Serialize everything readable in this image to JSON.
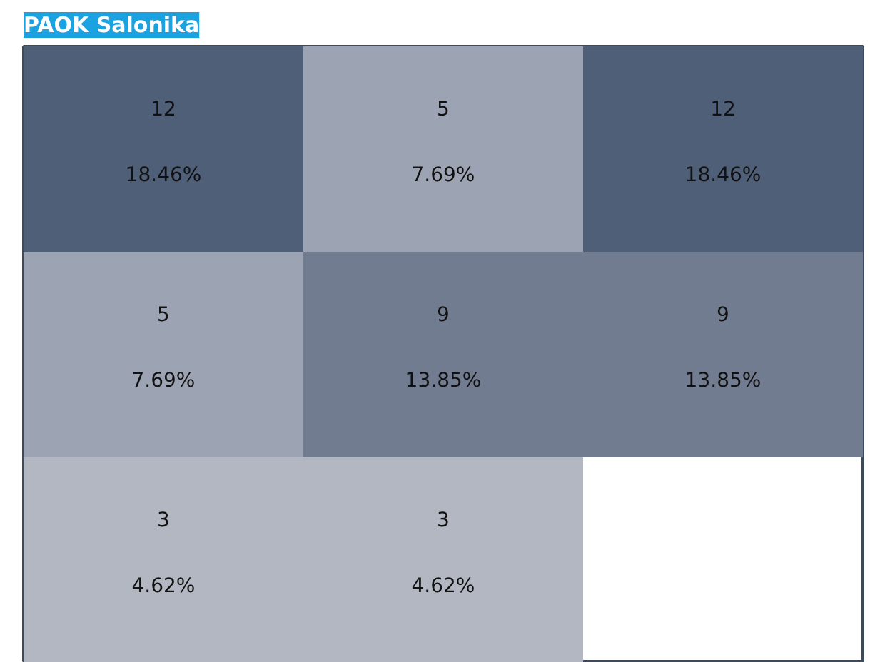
{
  "chart_data": {
    "type": "heatmap",
    "title": "PAOK Salonika",
    "categories": [
      null,
      null,
      null
    ],
    "y_categories": [
      null,
      null,
      null
    ],
    "cells": [
      [
        12,
        5,
        12
      ],
      [
        5,
        9,
        9
      ],
      [
        3,
        3,
        null
      ]
    ],
    "data_labels": true,
    "annotations": [
      "18.46%",
      "7.69%",
      "18.46%",
      "7.69%",
      "13.85%",
      "13.85%",
      "4.62%",
      "4.62%"
    ],
    "tick_labels": false,
    "grid": false
  }
}
